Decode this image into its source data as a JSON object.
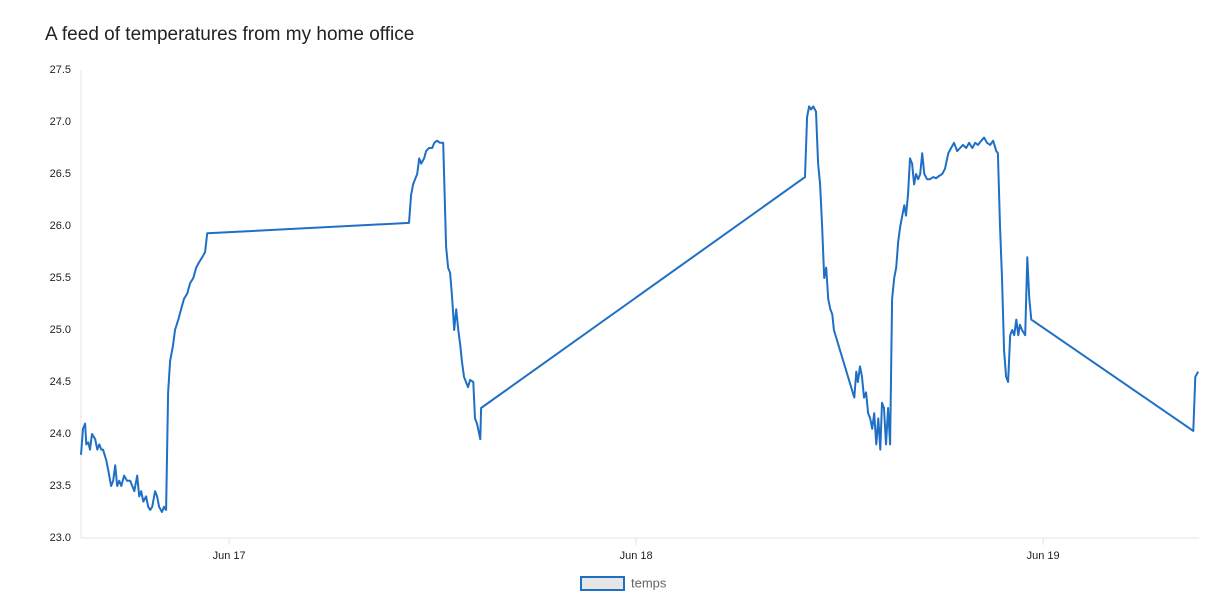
{
  "chart_data": {
    "type": "line",
    "title": "A feed of temperatures from my home office",
    "x": [
      16.636,
      16.641,
      16.646,
      16.649,
      16.654,
      16.658,
      16.663,
      16.671,
      16.676,
      16.681,
      16.686,
      16.69,
      16.698,
      16.703,
      16.71,
      16.715,
      16.72,
      16.725,
      16.73,
      16.735,
      16.742,
      16.749,
      16.757,
      16.762,
      16.767,
      16.774,
      16.779,
      16.784,
      16.789,
      16.796,
      16.801,
      16.806,
      16.811,
      16.818,
      16.823,
      16.828,
      16.835,
      16.84,
      16.845,
      16.85,
      16.855,
      16.862,
      16.867,
      16.875,
      16.882,
      16.889,
      16.897,
      16.904,
      16.912,
      16.919,
      16.926,
      16.934,
      16.941,
      16.946,
      17.442,
      17.447,
      17.452,
      17.457,
      17.462,
      17.467,
      17.472,
      17.479,
      17.484,
      17.491,
      17.499,
      17.504,
      17.511,
      17.518,
      17.526,
      17.533,
      17.538,
      17.543,
      17.548,
      17.553,
      17.558,
      17.563,
      17.568,
      17.572,
      17.577,
      17.582,
      17.587,
      17.592,
      17.6,
      17.604,
      17.609,
      17.617,
      17.619,
      18.415,
      18.42,
      18.425,
      18.43,
      18.435,
      18.442,
      18.447,
      18.452,
      18.457,
      18.462,
      18.467,
      18.472,
      18.477,
      18.482,
      18.486,
      18.536,
      18.541,
      18.545,
      18.55,
      18.555,
      18.56,
      18.565,
      18.57,
      18.575,
      18.58,
      18.585,
      18.59,
      18.595,
      18.6,
      18.604,
      18.609,
      18.614,
      18.619,
      18.624,
      18.629,
      18.634,
      18.639,
      18.644,
      18.649,
      18.654,
      18.659,
      18.663,
      18.668,
      18.673,
      18.678,
      18.683,
      18.688,
      18.693,
      18.698,
      18.703,
      18.708,
      18.715,
      18.722,
      18.73,
      18.737,
      18.744,
      18.752,
      18.759,
      18.767,
      18.774,
      18.781,
      18.789,
      18.796,
      18.803,
      18.811,
      18.818,
      18.826,
      18.833,
      18.84,
      18.848,
      18.855,
      18.862,
      18.87,
      18.877,
      18.885,
      18.889,
      18.894,
      18.899,
      18.904,
      18.909,
      18.914,
      18.919,
      18.924,
      18.929,
      18.934,
      18.939,
      18.943,
      18.948,
      18.956,
      18.961,
      18.966,
      18.971,
      19.369,
      19.374,
      19.381
    ],
    "series": [
      {
        "name": "temps",
        "color": "#1f6fc5",
        "values": [
          23.8,
          24.05,
          24.1,
          23.9,
          23.92,
          23.85,
          24.0,
          23.95,
          23.85,
          23.9,
          23.85,
          23.85,
          23.75,
          23.65,
          23.5,
          23.55,
          23.7,
          23.5,
          23.55,
          23.5,
          23.6,
          23.55,
          23.55,
          23.5,
          23.45,
          23.6,
          23.4,
          23.45,
          23.35,
          23.4,
          23.3,
          23.27,
          23.3,
          23.45,
          23.4,
          23.3,
          23.25,
          23.3,
          23.27,
          24.4,
          24.7,
          24.85,
          25.0,
          25.1,
          25.2,
          25.3,
          25.35,
          25.45,
          25.5,
          25.6,
          25.65,
          25.7,
          25.75,
          25.93,
          26.03,
          26.3,
          26.4,
          26.45,
          26.5,
          26.65,
          26.6,
          26.65,
          26.72,
          26.75,
          26.75,
          26.8,
          26.82,
          26.8,
          26.8,
          25.8,
          25.6,
          25.55,
          25.3,
          25.0,
          25.2,
          25.0,
          24.85,
          24.7,
          24.55,
          24.5,
          24.45,
          24.52,
          24.5,
          24.15,
          24.1,
          23.95,
          24.25,
          26.47,
          27.05,
          27.15,
          27.12,
          27.15,
          27.1,
          26.6,
          26.4,
          26.0,
          25.5,
          25.6,
          25.3,
          25.2,
          25.15,
          25.0,
          24.35,
          24.6,
          24.5,
          24.65,
          24.55,
          24.35,
          24.4,
          24.2,
          24.15,
          24.05,
          24.2,
          23.9,
          24.15,
          23.85,
          24.3,
          24.25,
          23.9,
          24.25,
          23.9,
          25.3,
          25.5,
          25.6,
          25.85,
          26.0,
          26.1,
          26.2,
          26.1,
          26.3,
          26.65,
          26.6,
          26.4,
          26.5,
          26.45,
          26.5,
          26.7,
          26.5,
          26.45,
          26.45,
          26.47,
          26.46,
          26.48,
          26.5,
          26.55,
          26.7,
          26.75,
          26.8,
          26.72,
          26.75,
          26.78,
          26.75,
          26.8,
          26.75,
          26.8,
          26.78,
          26.82,
          26.85,
          26.8,
          26.78,
          26.82,
          26.72,
          26.7,
          26.0,
          25.5,
          24.8,
          24.55,
          24.5,
          24.95,
          25.0,
          24.95,
          25.1,
          24.95,
          25.05,
          25.0,
          24.95,
          25.7,
          25.3,
          25.1,
          24.03,
          24.55,
          24.6
        ]
      }
    ],
    "xlim": [
      16.636,
      19.383
    ],
    "xticks": [
      {
        "value": 17,
        "label": "Jun 17"
      },
      {
        "value": 18,
        "label": "Jun 18"
      },
      {
        "value": 19,
        "label": "Jun 19"
      }
    ],
    "ylim": [
      23.0,
      27.5
    ],
    "yticks": [
      {
        "value": 23,
        "label": "23.0"
      },
      23.5,
      {
        "value": 24,
        "label": "24.0"
      },
      24.5,
      {
        "value": 25,
        "label": "25.0"
      },
      25.5,
      {
        "value": 26,
        "label": "26.0"
      },
      26.5,
      {
        "value": 27,
        "label": "27.0"
      },
      27.5
    ],
    "grid": false,
    "legend": "bottom"
  }
}
